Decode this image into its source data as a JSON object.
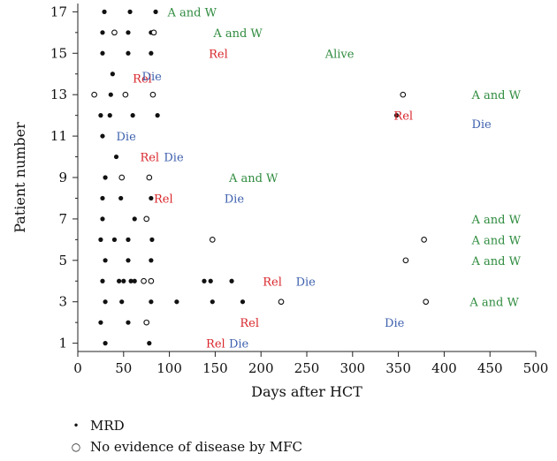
{
  "chart_data": {
    "type": "scatter",
    "title": "",
    "xlabel": "Days after HCT",
    "ylabel": "Patient number",
    "xlim": [
      0,
      500
    ],
    "ylim": [
      0.6,
      17.4
    ],
    "x_ticks": [
      "0",
      "50",
      "100",
      "150",
      "200",
      "250",
      "300",
      "350",
      "400",
      "450",
      "500"
    ],
    "y_ticks": [
      "1",
      "3",
      "5",
      "7",
      "9",
      "11",
      "13",
      "15",
      "17"
    ],
    "grid": false,
    "series": [
      {
        "name": "MRD",
        "marker": "filled-circle",
        "points": [
          [
            29,
            17
          ],
          [
            57,
            17
          ],
          [
            85,
            17
          ],
          [
            27,
            16
          ],
          [
            55,
            16
          ],
          [
            80,
            16
          ],
          [
            27,
            15
          ],
          [
            55,
            15
          ],
          [
            80,
            15
          ],
          [
            38,
            14
          ],
          [
            36,
            13
          ],
          [
            25,
            12
          ],
          [
            35,
            12
          ],
          [
            60,
            12
          ],
          [
            87,
            12
          ],
          [
            348,
            12
          ],
          [
            27,
            11
          ],
          [
            42,
            10
          ],
          [
            30,
            9
          ],
          [
            27,
            8
          ],
          [
            47,
            8
          ],
          [
            80,
            8
          ],
          [
            27,
            7
          ],
          [
            62,
            7
          ],
          [
            25,
            6
          ],
          [
            40,
            6
          ],
          [
            55,
            6
          ],
          [
            81,
            6
          ],
          [
            30,
            5
          ],
          [
            55,
            5
          ],
          [
            80,
            5
          ],
          [
            27,
            4
          ],
          [
            45,
            4
          ],
          [
            50,
            4
          ],
          [
            58,
            4
          ],
          [
            62,
            4
          ],
          [
            138,
            4
          ],
          [
            145,
            4
          ],
          [
            168,
            4
          ],
          [
            30,
            3
          ],
          [
            48,
            3
          ],
          [
            80,
            3
          ],
          [
            108,
            3
          ],
          [
            147,
            3
          ],
          [
            180,
            3
          ],
          [
            25,
            2
          ],
          [
            55,
            2
          ],
          [
            30,
            1
          ],
          [
            78,
            1
          ]
        ]
      },
      {
        "name": "No evidence of disease by MFC",
        "marker": "open-circle",
        "points": [
          [
            40,
            16
          ],
          [
            83,
            16
          ],
          [
            18,
            13
          ],
          [
            52,
            13
          ],
          [
            82,
            13
          ],
          [
            355,
            13
          ],
          [
            48,
            9
          ],
          [
            78,
            9
          ],
          [
            75,
            7
          ],
          [
            147,
            6
          ],
          [
            378,
            6
          ],
          [
            358,
            5
          ],
          [
            72,
            4
          ],
          [
            80,
            4
          ],
          [
            222,
            3
          ],
          [
            380,
            3
          ],
          [
            75,
            2
          ]
        ]
      }
    ],
    "annotations": [
      {
        "text": "A and W",
        "x": 98,
        "y": 17,
        "color": "#2e8b3e"
      },
      {
        "text": "A and W",
        "x": 148,
        "y": 16,
        "color": "#2e8b3e"
      },
      {
        "text": "Rel",
        "x": 143,
        "y": 15,
        "color": "#d9262b"
      },
      {
        "text": "Alive",
        "x": 270,
        "y": 15,
        "color": "#2e8b3e"
      },
      {
        "text": "Rel",
        "x": 60,
        "y": 13.8,
        "color": "#d9262b"
      },
      {
        "text": "Die",
        "x": 70,
        "y": 13.9,
        "color": "#3c5fad"
      },
      {
        "text": "A and W",
        "x": 430,
        "y": 13,
        "color": "#2e8b3e"
      },
      {
        "text": "Rel",
        "x": 345,
        "y": 12,
        "color": "#d9262b"
      },
      {
        "text": "Die",
        "x": 430,
        "y": 11.6,
        "color": "#3c5fad"
      },
      {
        "text": "Die",
        "x": 42,
        "y": 11,
        "color": "#3c5fad"
      },
      {
        "text": "Rel",
        "x": 68,
        "y": 10,
        "color": "#d9262b"
      },
      {
        "text": "Die",
        "x": 94,
        "y": 10,
        "color": "#3c5fad"
      },
      {
        "text": "A and W",
        "x": 165,
        "y": 9,
        "color": "#2e8b3e"
      },
      {
        "text": "Rel",
        "x": 83,
        "y": 8,
        "color": "#d9262b"
      },
      {
        "text": "Die",
        "x": 160,
        "y": 8,
        "color": "#3c5fad"
      },
      {
        "text": "A and W",
        "x": 430,
        "y": 7,
        "color": "#2e8b3e"
      },
      {
        "text": "A and W",
        "x": 430,
        "y": 6,
        "color": "#2e8b3e"
      },
      {
        "text": "A and W",
        "x": 430,
        "y": 5,
        "color": "#2e8b3e"
      },
      {
        "text": "Rel",
        "x": 202,
        "y": 4,
        "color": "#d9262b"
      },
      {
        "text": "Die",
        "x": 238,
        "y": 4,
        "color": "#3c5fad"
      },
      {
        "text": "A and W",
        "x": 428,
        "y": 3,
        "color": "#2e8b3e"
      },
      {
        "text": "Rel",
        "x": 177,
        "y": 2,
        "color": "#d9262b"
      },
      {
        "text": "Die",
        "x": 335,
        "y": 2,
        "color": "#3c5fad"
      },
      {
        "text": "Rel",
        "x": 140,
        "y": 1,
        "color": "#d9262b"
      },
      {
        "text": "Die",
        "x": 165,
        "y": 1,
        "color": "#3c5fad"
      }
    ]
  },
  "legend": {
    "items": [
      {
        "marker": "•",
        "label": "MRD"
      },
      {
        "marker": "○",
        "label": "No evidence of disease by MFC"
      }
    ]
  }
}
